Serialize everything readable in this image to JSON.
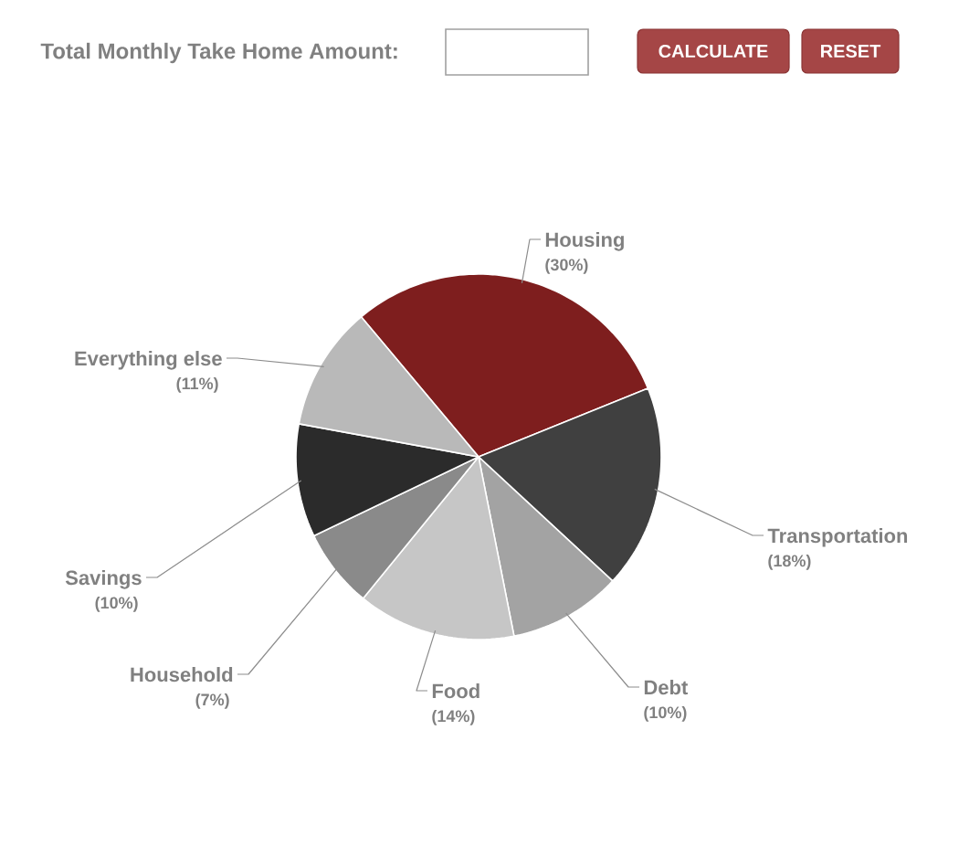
{
  "chart_data": {
    "type": "pie",
    "annotations": [
      "Total Monthly Take Home Amount:",
      "CALCULATE",
      "RESET"
    ],
    "categories": [
      "Housing",
      "Transportation",
      "Debt",
      "Food",
      "Household",
      "Savings",
      "Everything else"
    ],
    "values": [
      30,
      18,
      10,
      14,
      7,
      10,
      11
    ],
    "colors": [
      "#7e1e1e",
      "#404040",
      "#a3a3a3",
      "#c6c6c6",
      "#8a8a8a",
      "#2b2b2b",
      "#b9b9b9"
    ],
    "value_labels": [
      "(30%)",
      "(18%)",
      "(10%)",
      "(14%)",
      "(7%)",
      "(10%)",
      "(11%)"
    ]
  }
}
